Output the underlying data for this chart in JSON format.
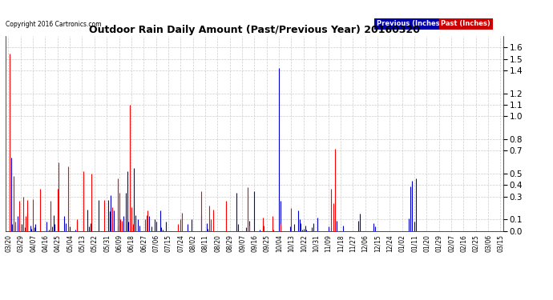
{
  "title": "Outdoor Rain Daily Amount (Past/Previous Year) 20160320",
  "copyright": "Copyright 2016 Cartronics.com",
  "legend_previous": "Previous (Inches)",
  "legend_past": "Past (Inches)",
  "legend_previous_color": "#0000CC",
  "legend_past_color": "#FF0000",
  "legend_previous_bg": "#0000AA",
  "legend_past_bg": "#CC0000",
  "background_color": "#ffffff",
  "plot_bg_color": "#ffffff",
  "grid_color": "#aaaaaa",
  "ylim": [
    0.0,
    1.7
  ],
  "yticks": [
    0.0,
    0.1,
    0.3,
    0.4,
    0.5,
    0.7,
    0.8,
    1.0,
    1.1,
    1.2,
    1.4,
    1.5,
    1.6
  ],
  "x_labels": [
    "03/20",
    "03/29",
    "04/07",
    "04/16",
    "04/25",
    "05/04",
    "05/13",
    "05/22",
    "05/31",
    "06/09",
    "06/18",
    "06/27",
    "07/06",
    "07/15",
    "07/24",
    "08/02",
    "08/11",
    "08/20",
    "08/29",
    "09/07",
    "09/16",
    "09/25",
    "10/04",
    "10/13",
    "10/22",
    "10/31",
    "11/09",
    "11/18",
    "11/27",
    "12/06",
    "12/15",
    "12/24",
    "01/02",
    "01/11",
    "01/20",
    "01/29",
    "02/07",
    "02/16",
    "02/25",
    "03/06",
    "03/15"
  ],
  "n_days": 361,
  "previous_data": [
    0.0,
    0.0,
    0.64,
    0.06,
    0.0,
    0.05,
    0.0,
    0.13,
    0.06,
    0.0,
    0.06,
    0.0,
    0.0,
    0.0,
    0.16,
    0.0,
    0.05,
    0.02,
    0.0,
    0.03,
    0.06,
    0.0,
    0.0,
    0.0,
    0.0,
    0.0,
    0.0,
    0.0,
    0.08,
    0.0,
    0.01,
    0.0,
    0.04,
    0.14,
    0.06,
    0.0,
    0.12,
    0.03,
    0.0,
    0.0,
    0.0,
    0.13,
    0.07,
    0.0,
    0.0,
    0.04,
    0.0,
    0.0,
    0.0,
    0.01,
    0.09,
    0.0,
    0.0,
    0.0,
    0.0,
    0.0,
    0.0,
    0.0,
    0.19,
    0.04,
    0.07,
    0.0,
    0.0,
    0.0,
    0.0,
    0.0,
    0.27,
    0.0,
    0.0,
    0.0,
    0.0,
    0.0,
    0.0,
    0.27,
    0.17,
    0.31,
    0.07,
    0.18,
    0.0,
    0.0,
    0.05,
    0.12,
    0.0,
    0.0,
    0.13,
    0.0,
    0.33,
    0.52,
    0.08,
    0.0,
    0.04,
    0.0,
    0.55,
    0.14,
    0.0,
    0.1,
    0.05,
    0.0,
    0.0,
    0.0,
    0.0,
    0.0,
    0.0,
    0.13,
    0.0,
    0.04,
    0.0,
    0.1,
    0.08,
    0.0,
    0.0,
    0.18,
    0.03,
    0.01,
    0.0,
    0.08,
    0.0,
    0.0,
    0.0,
    0.0,
    0.0,
    0.0,
    0.0,
    0.0,
    0.0,
    0.0,
    0.0,
    0.0,
    0.0,
    0.0,
    0.0,
    0.06,
    0.0,
    0.0,
    0.1,
    0.0,
    0.0,
    0.0,
    0.0,
    0.0,
    0.0,
    0.14,
    0.0,
    0.0,
    0.0,
    0.07,
    0.02,
    0.0,
    0.07,
    0.0,
    0.0,
    0.0,
    0.0,
    0.0,
    0.0,
    0.0,
    0.0,
    0.0,
    0.0,
    0.0,
    0.0,
    0.0,
    0.0,
    0.0,
    0.0,
    0.0,
    0.0,
    0.33,
    0.06,
    0.0,
    0.0,
    0.0,
    0.0,
    0.0,
    0.03,
    0.0,
    0.09,
    0.0,
    0.0,
    0.0,
    0.35,
    0.0,
    0.0,
    0.0,
    0.01,
    0.0,
    0.04,
    0.0,
    0.0,
    0.0,
    0.0,
    0.0,
    0.0,
    0.0,
    0.0,
    0.0,
    0.0,
    0.0,
    1.42,
    0.26,
    0.0,
    0.0,
    0.0,
    0.0,
    0.0,
    0.0,
    0.04,
    0.0,
    0.0,
    0.06,
    0.0,
    0.0,
    0.18,
    0.1,
    0.07,
    0.01,
    0.02,
    0.05,
    0.01,
    0.0,
    0.0,
    0.0,
    0.03,
    0.07,
    0.0,
    0.0,
    0.12,
    0.0,
    0.0,
    0.0,
    0.0,
    0.0,
    0.0,
    0.0,
    0.04,
    0.0,
    0.03,
    0.0,
    0.0,
    0.1,
    0.09,
    0.0,
    0.0,
    0.0,
    0.0,
    0.05,
    0.0,
    0.0,
    0.0,
    0.0,
    0.0,
    0.0,
    0.0,
    0.0,
    0.0,
    0.0,
    0.09,
    0.15,
    0.0,
    0.0,
    0.0,
    0.0,
    0.0,
    0.0,
    0.0,
    0.0,
    0.0,
    0.07,
    0.04,
    0.0,
    0.0,
    0.0,
    0.0,
    0.0,
    0.0,
    0.0,
    0.0,
    0.0,
    0.0,
    0.0,
    0.0,
    0.0,
    0.0,
    0.0,
    0.0,
    0.0,
    0.0,
    0.0,
    0.0,
    0.0,
    0.0,
    0.0,
    0.0,
    0.11,
    0.39,
    0.44,
    0.0,
    0.08,
    0.46,
    0.0,
    0.0,
    0.0,
    0.0,
    0.0,
    0.0,
    0.0,
    0.0,
    0.0,
    0.0,
    0.0,
    0.0,
    0.0,
    0.0,
    0.0,
    0.0,
    0.0,
    0.0,
    0.0,
    0.0,
    0.0,
    0.0,
    0.0,
    0.0,
    0.0,
    0.0,
    0.0,
    0.0,
    0.0,
    0.0,
    0.0,
    0.0,
    0.0,
    0.0,
    0.0,
    0.0,
    0.0,
    0.0,
    0.0,
    0.0,
    0.0,
    0.0,
    0.0,
    0.0,
    0.0,
    0.0,
    0.0,
    0.0,
    0.0,
    0.0,
    0.0,
    0.0,
    0.0,
    0.0,
    0.0,
    0.0,
    0.0,
    0.0,
    0.0,
    0.0,
    0.0,
    0.0
  ],
  "past_data": [
    0.0,
    1.55,
    0.0,
    0.0,
    0.48,
    0.08,
    0.0,
    0.0,
    0.26,
    0.0,
    0.0,
    0.3,
    0.03,
    0.13,
    0.27,
    0.0,
    0.0,
    0.0,
    0.28,
    0.0,
    0.0,
    0.0,
    0.0,
    0.37,
    0.0,
    0.0,
    0.0,
    0.0,
    0.0,
    0.0,
    0.0,
    0.26,
    0.0,
    0.0,
    0.0,
    0.0,
    0.37,
    0.6,
    0.0,
    0.0,
    0.0,
    0.0,
    0.0,
    0.0,
    0.56,
    0.0,
    0.0,
    0.0,
    0.0,
    0.0,
    0.1,
    0.0,
    0.0,
    0.0,
    0.0,
    0.52,
    0.0,
    0.0,
    0.0,
    0.0,
    0.0,
    0.5,
    0.0,
    0.0,
    0.0,
    0.0,
    0.0,
    0.0,
    0.0,
    0.0,
    0.27,
    0.0,
    0.0,
    0.0,
    0.0,
    0.0,
    0.21,
    0.0,
    0.0,
    0.0,
    0.46,
    0.33,
    0.1,
    0.09,
    0.0,
    0.0,
    0.0,
    0.0,
    0.0,
    1.1,
    0.21,
    0.06,
    0.0,
    0.0,
    0.0,
    0.0,
    0.0,
    0.0,
    0.0,
    0.0,
    0.1,
    0.14,
    0.18,
    0.0,
    0.0,
    0.0,
    0.0,
    0.0,
    0.0,
    0.0,
    0.0,
    0.0,
    0.0,
    0.0,
    0.0,
    0.0,
    0.0,
    0.0,
    0.0,
    0.0,
    0.0,
    0.0,
    0.0,
    0.0,
    0.06,
    0.0,
    0.1,
    0.16,
    0.0,
    0.0,
    0.0,
    0.0,
    0.0,
    0.0,
    0.0,
    0.0,
    0.0,
    0.0,
    0.0,
    0.0,
    0.0,
    0.35,
    0.0,
    0.0,
    0.0,
    0.0,
    0.0,
    0.22,
    0.1,
    0.0,
    0.19,
    0.0,
    0.0,
    0.0,
    0.0,
    0.0,
    0.0,
    0.0,
    0.0,
    0.26,
    0.0,
    0.0,
    0.0,
    0.0,
    0.0,
    0.0,
    0.0,
    0.0,
    0.0,
    0.0,
    0.0,
    0.0,
    0.0,
    0.0,
    0.0,
    0.38,
    0.05,
    0.0,
    0.0,
    0.0,
    0.0,
    0.0,
    0.0,
    0.0,
    0.0,
    0.0,
    0.12,
    0.05,
    0.0,
    0.0,
    0.0,
    0.0,
    0.0,
    0.13,
    0.01,
    0.0,
    0.0,
    0.0,
    0.0,
    0.06,
    0.0,
    0.0,
    0.0,
    0.0,
    0.0,
    0.0,
    0.0,
    0.2,
    0.0,
    0.0,
    0.0,
    0.0,
    0.0,
    0.0,
    0.0,
    0.0,
    0.0,
    0.0,
    0.0,
    0.0,
    0.0,
    0.0,
    0.0,
    0.0,
    0.0,
    0.0,
    0.0,
    0.0,
    0.0,
    0.0,
    0.0,
    0.0,
    0.0,
    0.0,
    0.0,
    0.0,
    0.37,
    0.0,
    0.24,
    0.72,
    0.0,
    0.0,
    0.0,
    0.0,
    0.0,
    0.0,
    0.0,
    0.0,
    0.0,
    0.0,
    0.0,
    0.0,
    0.0,
    0.0,
    0.0,
    0.0,
    0.0,
    0.0,
    0.0,
    0.0,
    0.0,
    0.0,
    0.0,
    0.0,
    0.0,
    0.0,
    0.0,
    0.0,
    0.0,
    0.0,
    0.0,
    0.0,
    0.0,
    0.0,
    0.0,
    0.0,
    0.0,
    0.0,
    0.0,
    0.0,
    0.0,
    0.0,
    0.0,
    0.0,
    0.0,
    0.0,
    0.0,
    0.0,
    0.0,
    0.0,
    0.0,
    0.0,
    0.0,
    0.0,
    0.0,
    0.0,
    0.0,
    0.0,
    0.0,
    0.0,
    0.0,
    0.0,
    0.0,
    0.0,
    0.0,
    0.0,
    0.0,
    0.0,
    0.0,
    0.0,
    0.0,
    0.0,
    0.0,
    0.0,
    0.0,
    0.0,
    0.0,
    0.0,
    0.0,
    0.0,
    0.0,
    0.0,
    0.0,
    0.0,
    0.0,
    0.0,
    0.0,
    0.0,
    0.0,
    0.0,
    0.0,
    0.0,
    0.0,
    0.0,
    0.0,
    0.0,
    0.0,
    0.0,
    0.0,
    0.0,
    0.0,
    0.0,
    0.0,
    0.0,
    0.0,
    0.0,
    0.0,
    0.0,
    0.0,
    0.0,
    0.0,
    0.0,
    0.0,
    0.0,
    0.0,
    0.0,
    0.0,
    0.0,
    0.0,
    0.0,
    0.0
  ]
}
